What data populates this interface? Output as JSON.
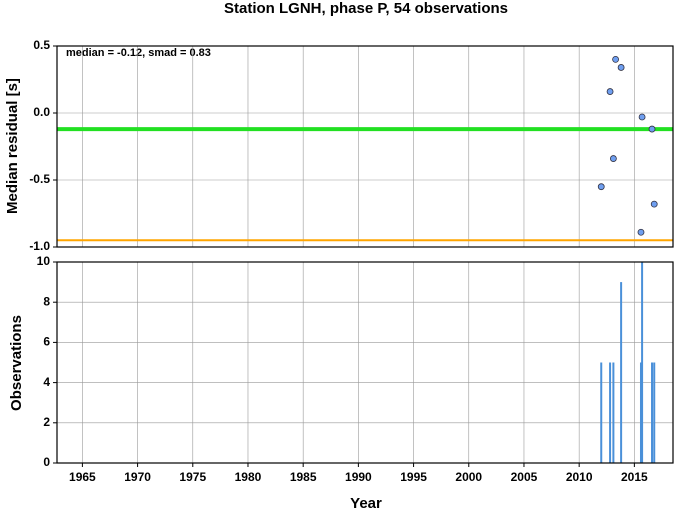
{
  "chart_data": [
    {
      "type": "scatter",
      "title": "Station LGNH, phase P, 54 observations",
      "ylabel": "Median residual [s]",
      "annotation": "median = -0.12, smad = 0.83",
      "x": [
        2012.0,
        2012.8,
        2013.3,
        2013.8,
        2013.1,
        2015.7,
        2016.6,
        2015.6,
        2016.8
      ],
      "values": [
        -0.55,
        0.16,
        0.4,
        0.34,
        -0.34,
        -0.03,
        -0.12,
        -0.89,
        -0.68
      ],
      "color": "#6f9ff0",
      "lines": [
        {
          "value": -0.12,
          "color": "#22e022"
        },
        {
          "value": -0.95,
          "color": "#ffa500"
        }
      ],
      "xlim": [
        1962.7,
        2018.5
      ],
      "ylim": [
        -1.0,
        0.5
      ],
      "yticks": [
        0.5,
        {
          "value": 0,
          "label": "0.0"
        },
        -0.5,
        {
          "value": -1,
          "label": "-1.0"
        }
      ],
      "grid": true
    },
    {
      "type": "bar",
      "xlabel": "Year",
      "ylabel": "Observations",
      "x": [
        2012.0,
        2012.8,
        2013.1,
        2013.8,
        2015.6,
        2015.7,
        2016.6,
        2016.8
      ],
      "values": [
        5,
        5,
        5,
        9,
        5,
        10,
        5,
        5
      ],
      "color": "#4a90d9",
      "xlim": [
        1962.7,
        2018.5
      ],
      "ylim": [
        0,
        10
      ],
      "xticks": [
        1965,
        1970,
        1975,
        1980,
        1985,
        1990,
        1995,
        2000,
        2005,
        2010,
        2015
      ],
      "yticks": [
        0,
        2,
        4,
        6,
        8,
        10
      ],
      "grid": true
    }
  ]
}
